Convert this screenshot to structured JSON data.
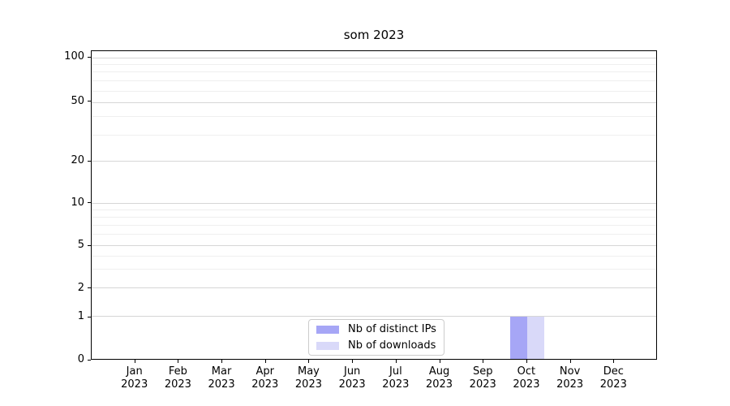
{
  "chart_data": {
    "type": "bar",
    "title": "som 2023",
    "categories": [
      "Jan 2023",
      "Feb 2023",
      "Mar 2023",
      "Apr 2023",
      "May 2023",
      "Jun 2023",
      "Jul 2023",
      "Aug 2023",
      "Sep 2023",
      "Oct 2023",
      "Nov 2023",
      "Dec 2023"
    ],
    "series": [
      {
        "name": "Nb of distinct IPs",
        "color": "#a6a6f6",
        "values": [
          0,
          0,
          0,
          0,
          0,
          0,
          0,
          0,
          0,
          1,
          0,
          0
        ]
      },
      {
        "name": "Nb of downloads",
        "color": "#d9d9f9",
        "values": [
          0,
          0,
          0,
          0,
          0,
          0,
          0,
          0,
          0,
          1,
          0,
          0
        ]
      }
    ],
    "xlabel": "",
    "ylabel": "",
    "yscale": "symlog",
    "ylim": [
      0,
      110
    ],
    "grid": true,
    "legend_position": "lower center",
    "y_ticks": [
      {
        "value": "100",
        "pos": 0.021
      },
      {
        "value": "50",
        "pos": 0.165
      },
      {
        "value": "20",
        "pos": 0.357
      },
      {
        "value": "10",
        "pos": 0.493
      },
      {
        "value": "5",
        "pos": 0.63
      },
      {
        "value": "2",
        "pos": 0.769
      },
      {
        "value": "1",
        "pos": 0.861
      },
      {
        "value": "0",
        "pos": 1.0
      }
    ],
    "y_minor_pos": [
      0.043,
      0.067,
      0.095,
      0.128,
      0.212,
      0.272,
      0.514,
      0.537,
      0.564,
      0.594,
      0.664,
      0.708
    ],
    "bar_width_frac": 0.03
  },
  "colors": {
    "spine": "#000000",
    "grid_major": "#d6d6d6",
    "grid_minor": "#efefef",
    "legend_border": "#cccccc",
    "text": "#000000"
  }
}
